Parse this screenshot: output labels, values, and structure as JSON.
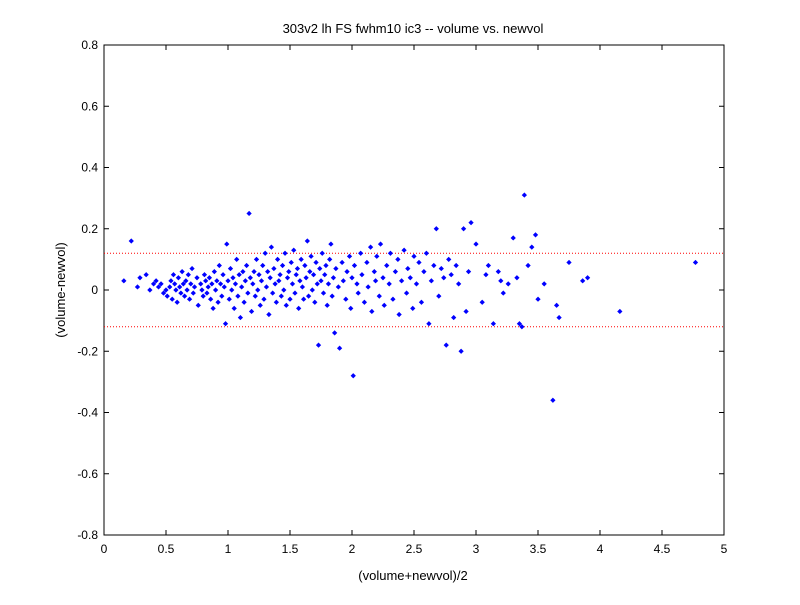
{
  "chart_data": {
    "type": "scatter",
    "title": "303v2 lh FS fwhm10 ic3 -- volume vs. newvol",
    "xlabel": "(volume+newvol)/2",
    "ylabel": "(volume-newvol)",
    "xlim": [
      0,
      5
    ],
    "ylim": [
      -0.8,
      0.8
    ],
    "x_ticks": [
      0,
      0.5,
      1,
      1.5,
      2,
      2.5,
      3,
      3.5,
      4,
      4.5,
      5
    ],
    "y_ticks": [
      -0.8,
      -0.6,
      -0.4,
      -0.2,
      0,
      0.2,
      0.4,
      0.6,
      0.8
    ],
    "x_tick_labels": [
      "0",
      "0.5",
      "1",
      "1.5",
      "2",
      "2.5",
      "3",
      "3.5",
      "4",
      "4.5",
      "5"
    ],
    "y_tick_labels": [
      "-0.8",
      "-0.6",
      "-0.4",
      "-0.2",
      "0",
      "0.2",
      "0.4",
      "0.6",
      "0.8"
    ],
    "grid": false,
    "marker_color": "#0000ff",
    "reference_lines": [
      {
        "y": 0.12,
        "style": "dotted",
        "color": "#ff0000"
      },
      {
        "y": -0.12,
        "style": "dotted",
        "color": "#ff0000"
      }
    ],
    "points": [
      [
        0.16,
        0.03
      ],
      [
        0.22,
        0.16
      ],
      [
        0.27,
        0.01
      ],
      [
        0.29,
        0.04
      ],
      [
        0.34,
        0.05
      ],
      [
        0.37,
        0.0
      ],
      [
        0.4,
        0.02
      ],
      [
        0.42,
        0.03
      ],
      [
        0.44,
        0.01
      ],
      [
        0.46,
        0.02
      ],
      [
        0.48,
        -0.01
      ],
      [
        0.5,
        0.0
      ],
      [
        0.51,
        -0.02
      ],
      [
        0.53,
        0.01
      ],
      [
        0.54,
        0.03
      ],
      [
        0.55,
        -0.03
      ],
      [
        0.56,
        0.05
      ],
      [
        0.57,
        0.02
      ],
      [
        0.58,
        0.0
      ],
      [
        0.59,
        -0.04
      ],
      [
        0.6,
        0.04
      ],
      [
        0.61,
        0.01
      ],
      [
        0.62,
        -0.01
      ],
      [
        0.63,
        0.06
      ],
      [
        0.64,
        0.02
      ],
      [
        0.65,
        -0.02
      ],
      [
        0.66,
        0.03
      ],
      [
        0.67,
        0.0
      ],
      [
        0.68,
        0.05
      ],
      [
        0.69,
        -0.03
      ],
      [
        0.7,
        0.02
      ],
      [
        0.71,
        0.07
      ],
      [
        0.72,
        -0.01
      ],
      [
        0.73,
        0.01
      ],
      [
        0.75,
        0.04
      ],
      [
        0.76,
        -0.05
      ],
      [
        0.78,
        0.02
      ],
      [
        0.79,
        0.0
      ],
      [
        0.8,
        -0.02
      ],
      [
        0.81,
        0.05
      ],
      [
        0.82,
        0.03
      ],
      [
        0.83,
        -0.01
      ],
      [
        0.84,
        0.01
      ],
      [
        0.85,
        0.04
      ],
      [
        0.86,
        -0.03
      ],
      [
        0.87,
        0.02
      ],
      [
        0.88,
        -0.06
      ],
      [
        0.89,
        0.06
      ],
      [
        0.9,
        0.0
      ],
      [
        0.91,
        0.03
      ],
      [
        0.92,
        -0.04
      ],
      [
        0.93,
        0.08
      ],
      [
        0.94,
        0.02
      ],
      [
        0.95,
        -0.02
      ],
      [
        0.96,
        0.05
      ],
      [
        0.97,
        0.01
      ],
      [
        0.98,
        -0.11
      ],
      [
        0.99,
        0.15
      ],
      [
        1.0,
        0.03
      ],
      [
        1.01,
        -0.03
      ],
      [
        1.02,
        0.07
      ],
      [
        1.03,
        0.0
      ],
      [
        1.04,
        0.04
      ],
      [
        1.05,
        -0.06
      ],
      [
        1.06,
        0.02
      ],
      [
        1.07,
        0.1
      ],
      [
        1.08,
        -0.02
      ],
      [
        1.09,
        0.05
      ],
      [
        1.1,
        -0.09
      ],
      [
        1.11,
        0.01
      ],
      [
        1.12,
        0.06
      ],
      [
        1.13,
        -0.04
      ],
      [
        1.14,
        0.03
      ],
      [
        1.15,
        0.08
      ],
      [
        1.16,
        -0.01
      ],
      [
        1.17,
        0.25
      ],
      [
        1.18,
        0.04
      ],
      [
        1.19,
        -0.07
      ],
      [
        1.2,
        0.02
      ],
      [
        1.21,
        0.06
      ],
      [
        1.22,
        -0.02
      ],
      [
        1.23,
        0.1
      ],
      [
        1.24,
        0.0
      ],
      [
        1.25,
        0.05
      ],
      [
        1.26,
        -0.05
      ],
      [
        1.27,
        0.03
      ],
      [
        1.28,
        0.08
      ],
      [
        1.29,
        -0.03
      ],
      [
        1.3,
        0.12
      ],
      [
        1.31,
        0.01
      ],
      [
        1.32,
        0.06
      ],
      [
        1.33,
        -0.08
      ],
      [
        1.34,
        0.04
      ],
      [
        1.35,
        0.14
      ],
      [
        1.36,
        -0.01
      ],
      [
        1.37,
        0.07
      ],
      [
        1.38,
        0.02
      ],
      [
        1.39,
        -0.04
      ],
      [
        1.4,
        0.1
      ],
      [
        1.41,
        0.03
      ],
      [
        1.42,
        0.05
      ],
      [
        1.43,
        -0.02
      ],
      [
        1.44,
        0.08
      ],
      [
        1.45,
        0.0
      ],
      [
        1.46,
        0.12
      ],
      [
        1.47,
        -0.05
      ],
      [
        1.48,
        0.04
      ],
      [
        1.49,
        0.06
      ],
      [
        1.5,
        -0.03
      ],
      [
        1.51,
        0.09
      ],
      [
        1.52,
        0.02
      ],
      [
        1.53,
        0.13
      ],
      [
        1.54,
        -0.01
      ],
      [
        1.55,
        0.05
      ],
      [
        1.56,
        0.07
      ],
      [
        1.57,
        -0.06
      ],
      [
        1.58,
        0.03
      ],
      [
        1.59,
        0.1
      ],
      [
        1.6,
        0.01
      ],
      [
        1.61,
        -0.03
      ],
      [
        1.62,
        0.08
      ],
      [
        1.63,
        0.04
      ],
      [
        1.64,
        0.16
      ],
      [
        1.65,
        -0.02
      ],
      [
        1.66,
        0.06
      ],
      [
        1.67,
        0.11
      ],
      [
        1.68,
        0.0
      ],
      [
        1.69,
        0.05
      ],
      [
        1.7,
        -0.04
      ],
      [
        1.71,
        0.09
      ],
      [
        1.72,
        0.02
      ],
      [
        1.73,
        -0.18
      ],
      [
        1.74,
        0.07
      ],
      [
        1.75,
        0.03
      ],
      [
        1.76,
        0.12
      ],
      [
        1.77,
        -0.01
      ],
      [
        1.78,
        0.05
      ],
      [
        1.79,
        0.08
      ],
      [
        1.8,
        -0.05
      ],
      [
        1.81,
        0.02
      ],
      [
        1.82,
        0.1
      ],
      [
        1.83,
        0.15
      ],
      [
        1.84,
        -0.02
      ],
      [
        1.85,
        0.04
      ],
      [
        1.86,
        -0.14
      ],
      [
        1.87,
        0.07
      ],
      [
        1.89,
        0.01
      ],
      [
        1.9,
        -0.19
      ],
      [
        1.92,
        0.09
      ],
      [
        1.93,
        0.03
      ],
      [
        1.95,
        -0.03
      ],
      [
        1.96,
        0.06
      ],
      [
        1.98,
        0.11
      ],
      [
        1.99,
        -0.06
      ],
      [
        2.0,
        0.04
      ],
      [
        2.01,
        -0.28
      ],
      [
        2.02,
        0.08
      ],
      [
        2.04,
        0.02
      ],
      [
        2.05,
        -0.01
      ],
      [
        2.07,
        0.12
      ],
      [
        2.08,
        0.05
      ],
      [
        2.1,
        -0.04
      ],
      [
        2.12,
        0.09
      ],
      [
        2.13,
        0.01
      ],
      [
        2.15,
        0.14
      ],
      [
        2.16,
        -0.07
      ],
      [
        2.18,
        0.06
      ],
      [
        2.19,
        0.03
      ],
      [
        2.2,
        0.11
      ],
      [
        2.22,
        -0.02
      ],
      [
        2.23,
        0.15
      ],
      [
        2.25,
        0.04
      ],
      [
        2.26,
        -0.05
      ],
      [
        2.28,
        0.08
      ],
      [
        2.3,
        0.02
      ],
      [
        2.31,
        0.12
      ],
      [
        2.33,
        -0.03
      ],
      [
        2.35,
        0.06
      ],
      [
        2.37,
        0.1
      ],
      [
        2.38,
        -0.08
      ],
      [
        2.4,
        0.03
      ],
      [
        2.42,
        0.13
      ],
      [
        2.44,
        -0.01
      ],
      [
        2.45,
        0.07
      ],
      [
        2.47,
        0.04
      ],
      [
        2.49,
        -0.06
      ],
      [
        2.5,
        0.11
      ],
      [
        2.52,
        0.02
      ],
      [
        2.54,
        0.09
      ],
      [
        2.56,
        -0.04
      ],
      [
        2.58,
        0.06
      ],
      [
        2.6,
        0.12
      ],
      [
        2.62,
        -0.11
      ],
      [
        2.64,
        0.03
      ],
      [
        2.66,
        0.08
      ],
      [
        2.68,
        0.2
      ],
      [
        2.7,
        -0.02
      ],
      [
        2.72,
        0.07
      ],
      [
        2.74,
        0.04
      ],
      [
        2.76,
        -0.18
      ],
      [
        2.78,
        0.1
      ],
      [
        2.8,
        0.05
      ],
      [
        2.82,
        -0.09
      ],
      [
        2.84,
        0.08
      ],
      [
        2.86,
        0.02
      ],
      [
        2.88,
        -0.2
      ],
      [
        2.9,
        0.2
      ],
      [
        2.92,
        -0.07
      ],
      [
        2.94,
        0.06
      ],
      [
        2.96,
        0.22
      ],
      [
        3.0,
        0.15
      ],
      [
        3.05,
        -0.04
      ],
      [
        3.08,
        0.05
      ],
      [
        3.1,
        0.08
      ],
      [
        3.14,
        -0.11
      ],
      [
        3.18,
        0.06
      ],
      [
        3.2,
        0.03
      ],
      [
        3.22,
        -0.01
      ],
      [
        3.26,
        0.02
      ],
      [
        3.3,
        0.17
      ],
      [
        3.33,
        0.04
      ],
      [
        3.35,
        -0.11
      ],
      [
        3.37,
        -0.12
      ],
      [
        3.39,
        0.31
      ],
      [
        3.42,
        0.08
      ],
      [
        3.45,
        0.14
      ],
      [
        3.48,
        0.18
      ],
      [
        3.5,
        -0.03
      ],
      [
        3.55,
        0.02
      ],
      [
        3.62,
        -0.36
      ],
      [
        3.65,
        -0.05
      ],
      [
        3.67,
        -0.09
      ],
      [
        3.75,
        0.09
      ],
      [
        3.86,
        0.03
      ],
      [
        3.9,
        0.04
      ],
      [
        4.16,
        -0.07
      ],
      [
        4.77,
        0.09
      ]
    ]
  }
}
